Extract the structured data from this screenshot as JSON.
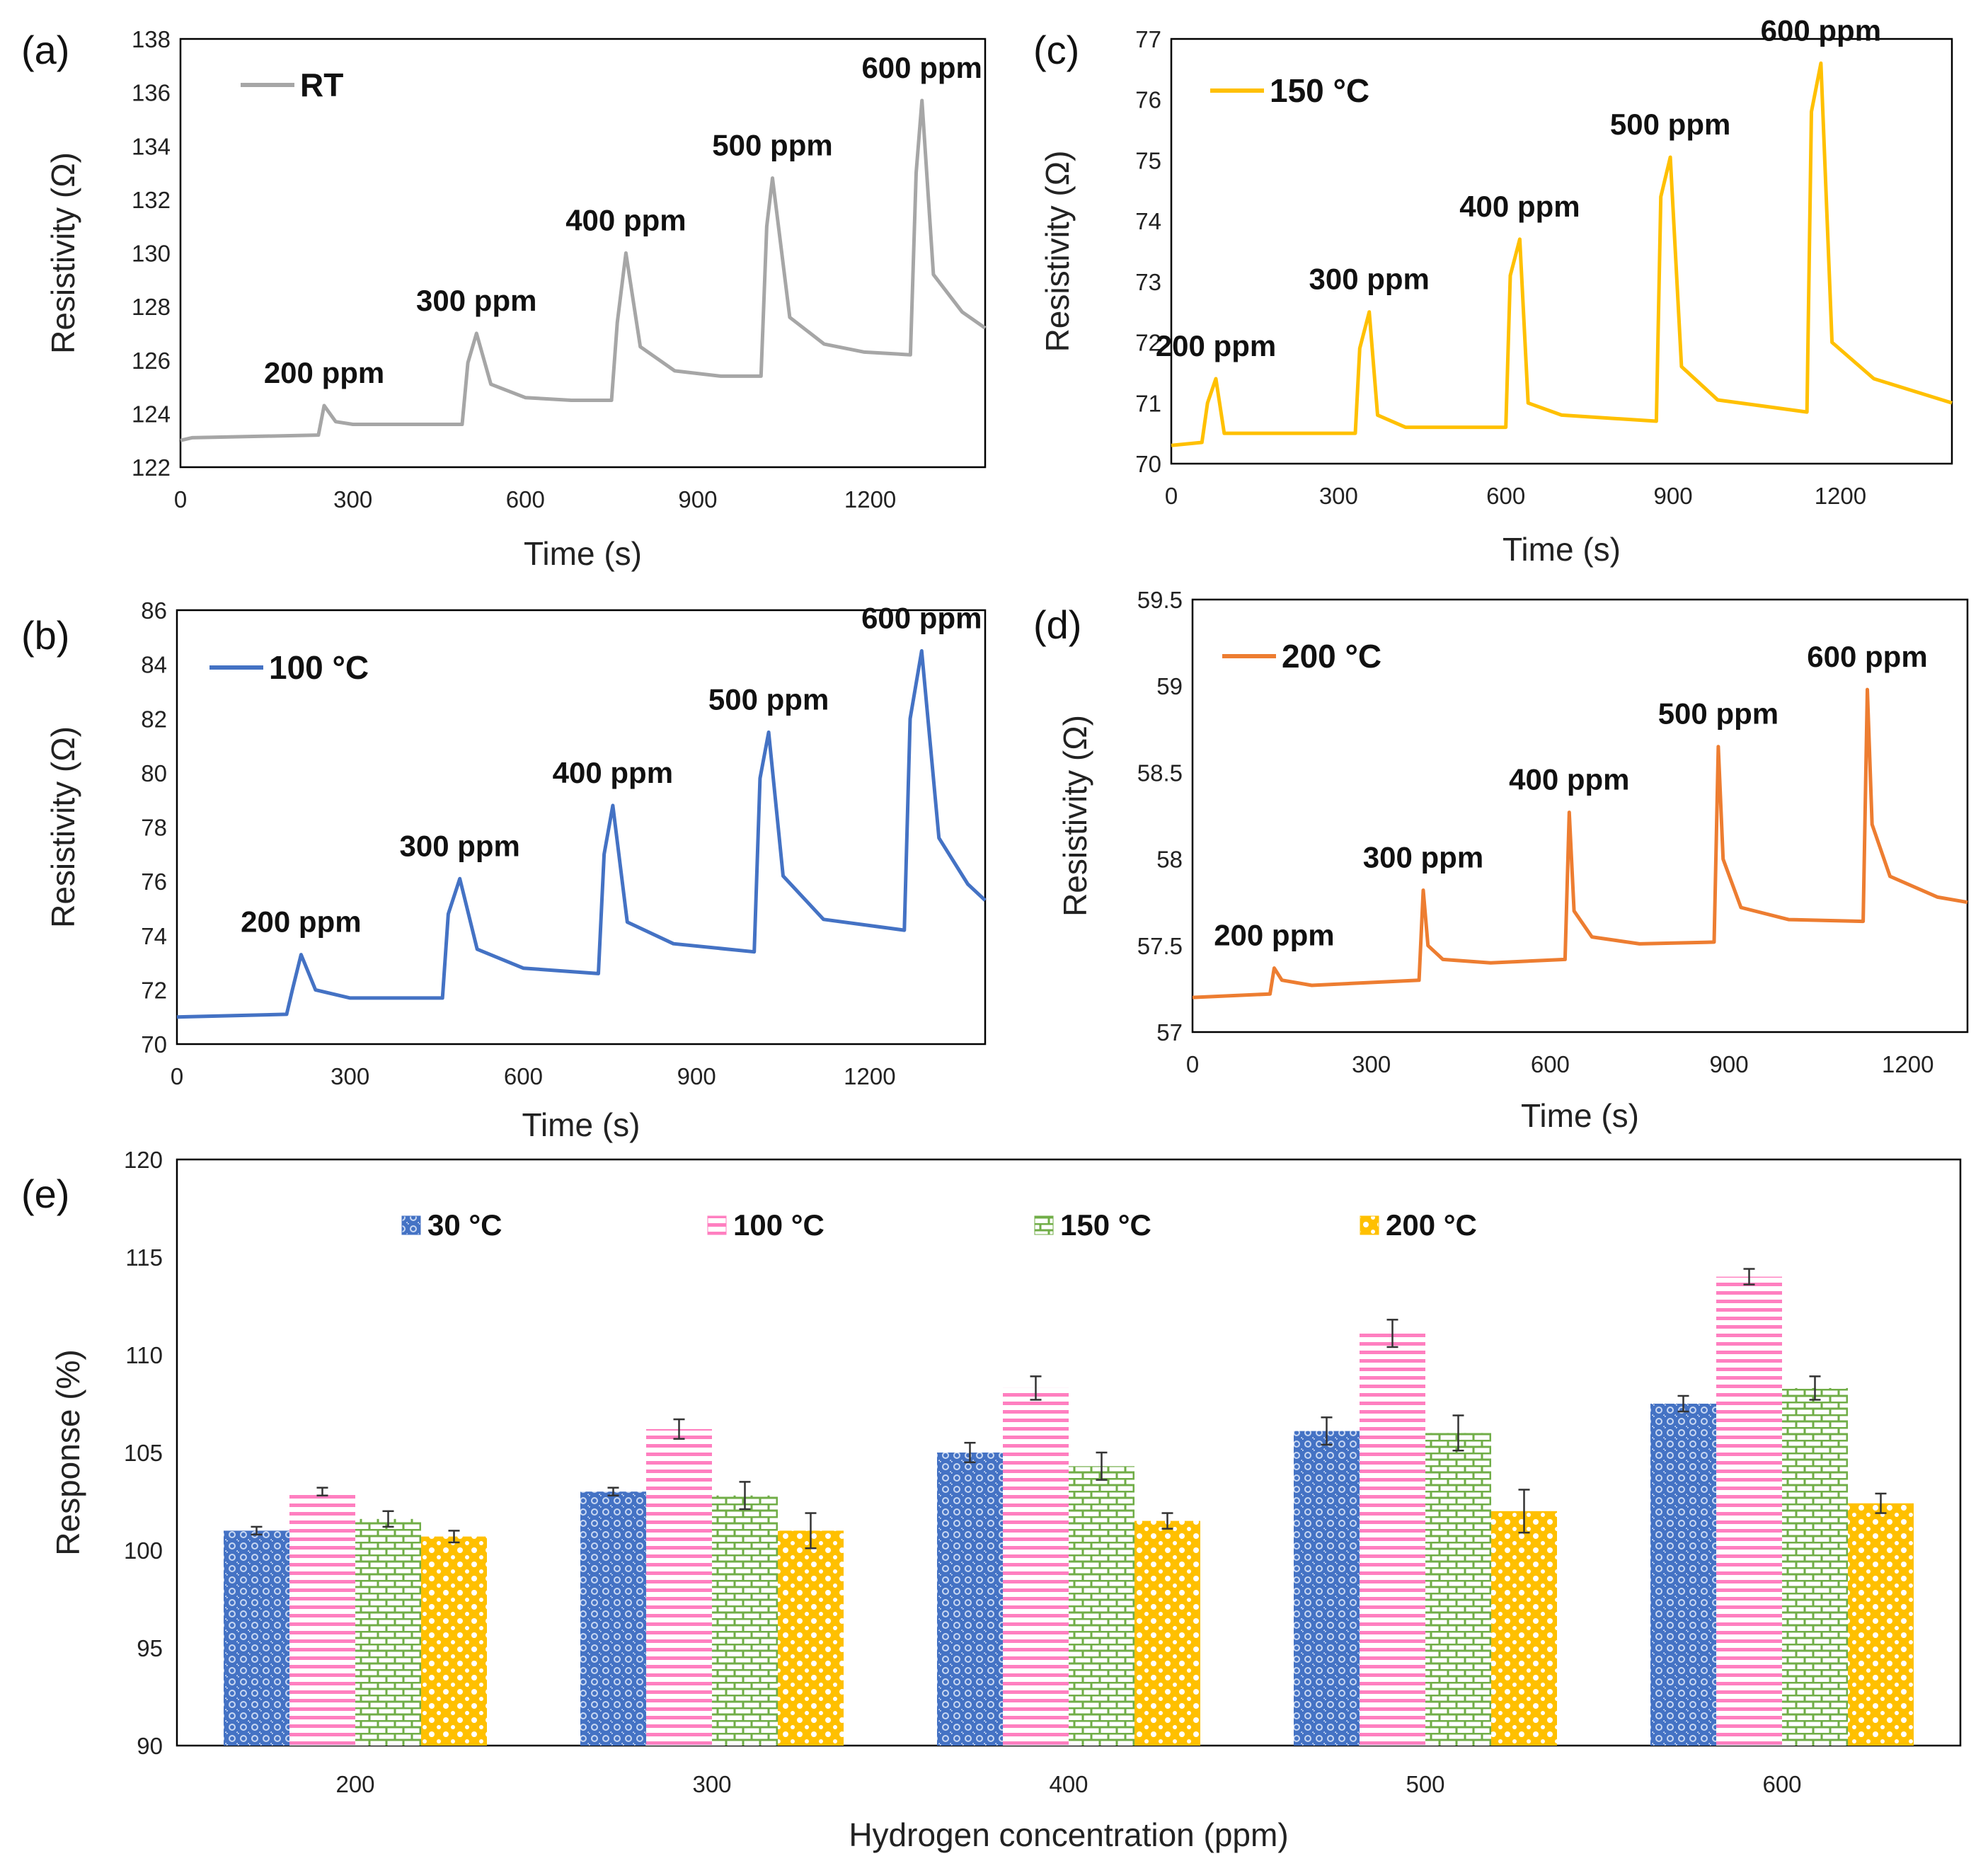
{
  "chart_data": [
    {
      "id": "a",
      "panel_label": "(a)",
      "type": "line",
      "legend": "RT",
      "color": "#a6a6a6",
      "xlabel": "Time (s)",
      "ylabel": "Resistivity (Ω)",
      "xlim": [
        0,
        1400
      ],
      "ylim": [
        122,
        138
      ],
      "xticks": [
        0,
        300,
        600,
        900,
        1200
      ],
      "yticks": [
        122,
        124,
        126,
        128,
        130,
        132,
        134,
        136,
        138
      ],
      "x": [
        0,
        20,
        240,
        250,
        270,
        300,
        350,
        490,
        500,
        515,
        540,
        600,
        680,
        750,
        760,
        775,
        800,
        860,
        940,
        1010,
        1020,
        1030,
        1060,
        1120,
        1190,
        1270,
        1280,
        1290,
        1310,
        1360,
        1400
      ],
      "y": [
        123.0,
        123.1,
        123.2,
        124.3,
        123.7,
        123.6,
        123.6,
        123.6,
        125.9,
        127.0,
        125.1,
        124.6,
        124.5,
        124.5,
        127.4,
        130.0,
        126.5,
        125.6,
        125.4,
        125.4,
        131.0,
        132.8,
        127.6,
        126.6,
        126.3,
        126.2,
        133.0,
        135.7,
        129.2,
        127.8,
        127.2
      ],
      "annotations": [
        {
          "text": "200 ppm",
          "x": 250,
          "y": 124.3
        },
        {
          "text": "300 ppm",
          "x": 515,
          "y": 127.0
        },
        {
          "text": "400 ppm",
          "x": 775,
          "y": 130.0
        },
        {
          "text": "500 ppm",
          "x": 1030,
          "y": 132.8
        },
        {
          "text": "600 ppm",
          "x": 1290,
          "y": 135.7
        }
      ]
    },
    {
      "id": "b",
      "panel_label": "(b)",
      "type": "line",
      "legend": "100 °C",
      "color": "#4472c4",
      "xlabel": "Time (s)",
      "ylabel": "Resistivity (Ω)",
      "xlim": [
        0,
        1400
      ],
      "ylim": [
        70,
        86
      ],
      "xticks": [
        0,
        300,
        600,
        900,
        1200
      ],
      "yticks": [
        70,
        72,
        74,
        76,
        78,
        80,
        82,
        84,
        86
      ],
      "x": [
        0,
        190,
        200,
        215,
        240,
        300,
        460,
        470,
        490,
        520,
        600,
        730,
        740,
        755,
        780,
        860,
        1000,
        1010,
        1025,
        1050,
        1120,
        1260,
        1270,
        1290,
        1320,
        1370,
        1400
      ],
      "y": [
        71.0,
        71.1,
        72.0,
        73.3,
        72.0,
        71.7,
        71.7,
        74.8,
        76.1,
        73.5,
        72.8,
        72.6,
        77.0,
        78.8,
        74.5,
        73.7,
        73.4,
        79.8,
        81.5,
        76.2,
        74.6,
        74.2,
        82.0,
        84.5,
        77.6,
        75.9,
        75.3
      ],
      "annotations": [
        {
          "text": "200 ppm",
          "x": 215,
          "y": 73.3
        },
        {
          "text": "300 ppm",
          "x": 490,
          "y": 76.1
        },
        {
          "text": "400 ppm",
          "x": 755,
          "y": 78.8
        },
        {
          "text": "500 ppm",
          "x": 1025,
          "y": 81.5
        },
        {
          "text": "600 ppm",
          "x": 1290,
          "y": 84.5
        }
      ]
    },
    {
      "id": "c",
      "panel_label": "(c)",
      "type": "line",
      "legend": "150 °C",
      "color": "#ffc000",
      "xlabel": "Time (s)",
      "ylabel": "Resistivity (Ω)",
      "xlim": [
        0,
        1400
      ],
      "ylim": [
        70,
        77
      ],
      "xticks": [
        0,
        300,
        600,
        900,
        1200
      ],
      "yticks": [
        70,
        71,
        72,
        73,
        74,
        75,
        76,
        77
      ],
      "x": [
        0,
        55,
        65,
        80,
        95,
        150,
        330,
        338,
        355,
        370,
        420,
        600,
        608,
        625,
        640,
        700,
        870,
        878,
        895,
        915,
        980,
        1140,
        1148,
        1165,
        1185,
        1260,
        1400
      ],
      "y": [
        70.3,
        70.35,
        71.0,
        71.4,
        70.5,
        70.5,
        70.5,
        71.9,
        72.5,
        70.8,
        70.6,
        70.6,
        73.1,
        73.7,
        71.0,
        70.8,
        70.7,
        74.4,
        75.05,
        71.6,
        71.05,
        70.85,
        75.8,
        76.6,
        72.0,
        71.4,
        71.0
      ],
      "annotations": [
        {
          "text": "200 ppm",
          "x": 80,
          "y": 71.4
        },
        {
          "text": "300 ppm",
          "x": 355,
          "y": 72.5
        },
        {
          "text": "400 ppm",
          "x": 625,
          "y": 73.7
        },
        {
          "text": "500 ppm",
          "x": 895,
          "y": 75.05
        },
        {
          "text": "600 ppm",
          "x": 1165,
          "y": 76.6
        }
      ]
    },
    {
      "id": "d",
      "panel_label": "(d)",
      "type": "line",
      "legend": "200 °C",
      "color": "#ed7d31",
      "xlabel": "Time (s)",
      "ylabel": "Resistivity (Ω)",
      "xlim": [
        0,
        1300
      ],
      "ylim": [
        57,
        59.5
      ],
      "xticks": [
        0,
        300,
        600,
        900,
        1200
      ],
      "yticks": [
        57,
        57.5,
        58,
        58.5,
        59,
        59.5
      ],
      "yticklabels": [
        "57",
        "57.5",
        "58",
        "58.5",
        "59",
        "59.5"
      ],
      "x": [
        0,
        130,
        137,
        150,
        200,
        380,
        387,
        395,
        420,
        500,
        625,
        632,
        640,
        670,
        750,
        875,
        882,
        890,
        920,
        1000,
        1125,
        1132,
        1140,
        1170,
        1250,
        1300
      ],
      "y": [
        57.2,
        57.22,
        57.37,
        57.3,
        57.27,
        57.3,
        57.82,
        57.5,
        57.42,
        57.4,
        57.42,
        58.27,
        57.7,
        57.55,
        57.51,
        57.52,
        58.65,
        58.0,
        57.72,
        57.65,
        57.64,
        58.98,
        58.2,
        57.9,
        57.78,
        57.75
      ],
      "annotations": [
        {
          "text": "200 ppm",
          "x": 137,
          "y": 57.37
        },
        {
          "text": "300 ppm",
          "x": 387,
          "y": 57.82
        },
        {
          "text": "400 ppm",
          "x": 632,
          "y": 58.27
        },
        {
          "text": "500 ppm",
          "x": 882,
          "y": 58.65
        },
        {
          "text": "600 ppm",
          "x": 1132,
          "y": 58.98
        }
      ]
    },
    {
      "id": "e",
      "panel_label": "(e)",
      "type": "bar",
      "xlabel": "Hydrogen concentration (ppm)",
      "ylabel": "Response (%)",
      "ylim": [
        90,
        120
      ],
      "yticks": [
        90,
        95,
        100,
        105,
        110,
        115,
        120
      ],
      "categories": [
        "200",
        "300",
        "400",
        "500",
        "600"
      ],
      "series": [
        {
          "name": "30 °C",
          "color": "#4472c4",
          "values": [
            101.0,
            103.0,
            105.0,
            106.1,
            107.5
          ],
          "errors": [
            0.2,
            0.2,
            0.5,
            0.7,
            0.4
          ]
        },
        {
          "name": "100 °C",
          "color": "#ff7fc0",
          "values": [
            103.0,
            106.2,
            108.3,
            111.1,
            114.0
          ],
          "errors": [
            0.2,
            0.5,
            0.6,
            0.7,
            0.4
          ]
        },
        {
          "name": "150 °C",
          "color": "#70ad47",
          "values": [
            101.6,
            102.8,
            104.3,
            106.0,
            108.3
          ],
          "errors": [
            0.4,
            0.7,
            0.7,
            0.9,
            0.6
          ]
        },
        {
          "name": "200 °C",
          "color": "#ffc000",
          "values": [
            100.7,
            101.0,
            101.5,
            102.0,
            102.4
          ],
          "errors": [
            0.3,
            0.9,
            0.4,
            1.1,
            0.5
          ]
        }
      ]
    }
  ]
}
